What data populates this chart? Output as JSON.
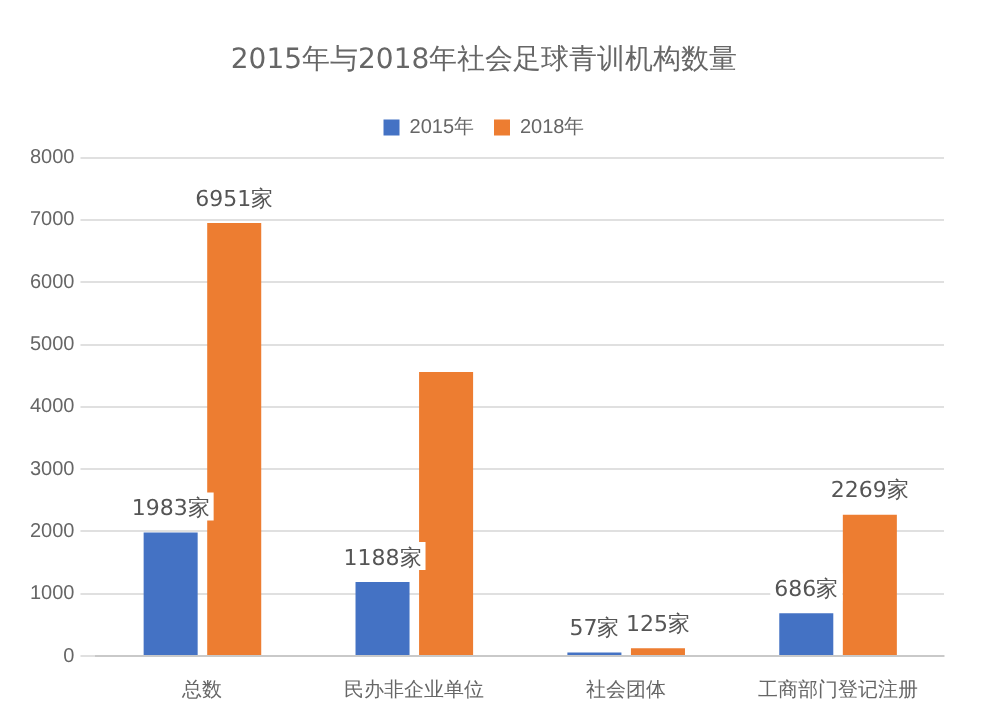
{
  "chart_data": {
    "type": "bar",
    "title": "2015年与2018年社会足球青训机构数量",
    "categories": [
      "总数",
      "民办非企业单位",
      "社会团体",
      "工商部门登记注册"
    ],
    "series": [
      {
        "name": "2015年",
        "color": "#4472c4",
        "values": [
          1983,
          1188,
          57,
          686
        ],
        "value_labels": [
          "1983家",
          "1188家",
          "57家",
          "686家"
        ]
      },
      {
        "name": "2018年",
        "color": "#ed7d31",
        "values": [
          6951,
          4560,
          125,
          2269
        ],
        "value_labels": [
          "6951家",
          null,
          "125家",
          "2269家"
        ]
      }
    ],
    "ylim": [
      0,
      8000
    ],
    "yticks": [
      0,
      1000,
      2000,
      3000,
      4000,
      5000,
      6000,
      7000,
      8000
    ],
    "grid": "y",
    "legend": "top"
  }
}
